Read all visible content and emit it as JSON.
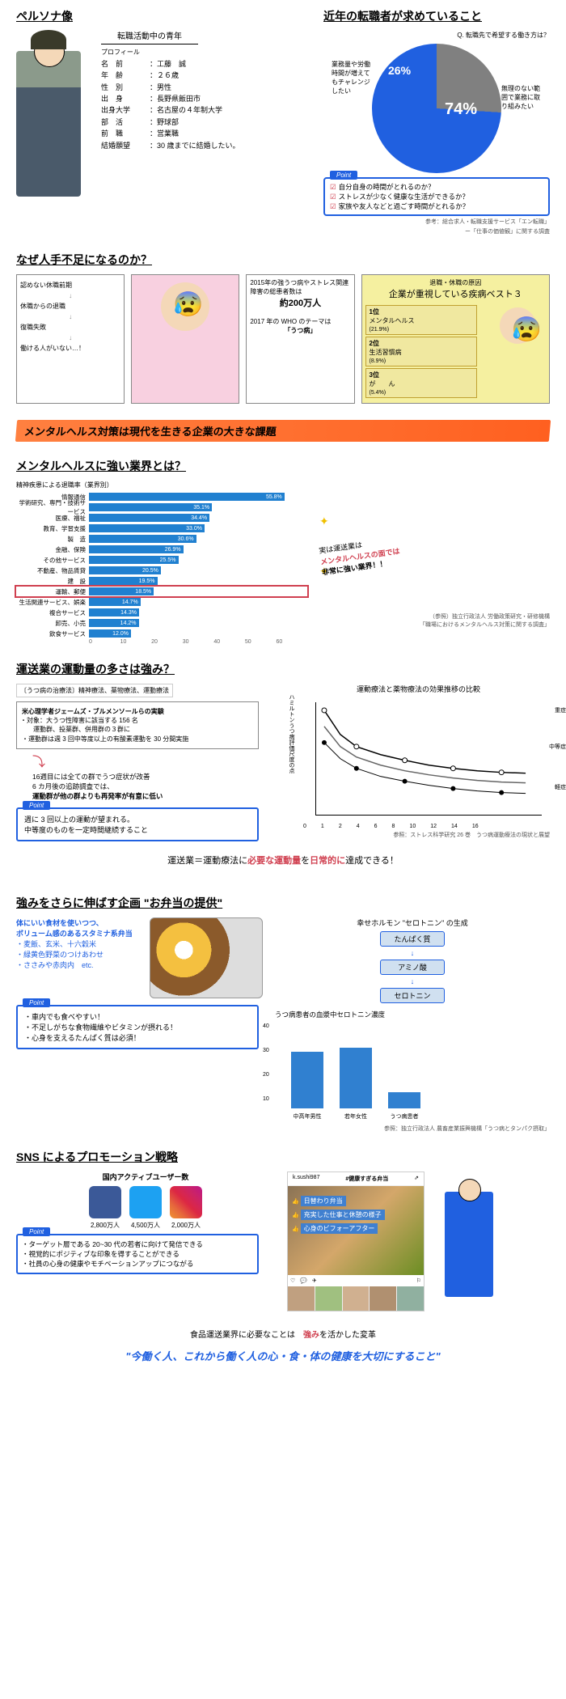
{
  "persona": {
    "heading": "ペルソナ像",
    "subtitle": "転職活動中の青年",
    "profile_label": "プロフィール",
    "rows": [
      {
        "k": "名　前",
        "v": "：工藤　誠"
      },
      {
        "k": "年　齢",
        "v": "：２６歳"
      },
      {
        "k": "性　別",
        "v": "：男性"
      },
      {
        "k": "出　身",
        "v": "：長野県飯田市"
      },
      {
        "k": "出身大学",
        "v": "：名古屋の４年制大学"
      },
      {
        "k": "部　活",
        "v": "：野球部"
      },
      {
        "k": "前　職",
        "v": "：営業職"
      },
      {
        "k": "結婚願望",
        "v": "：30 歳までに結婚したい。"
      }
    ]
  },
  "jobseeker": {
    "heading": "近年の転職者が求めていること",
    "question": "Q. 転職先で希望する働き方は？",
    "pie": {
      "slices": [
        {
          "label": "業務量や労働時間が増えてもチャレンジしたい",
          "pct": "26%",
          "color": "#808080"
        },
        {
          "label": "無理のない範囲で業務に取り組みたい",
          "pct": "74%",
          "color": "#2060e0"
        }
      ]
    },
    "points": [
      "自分自身の時間がとれるのか？",
      "ストレスが少なく健康な生活ができるか？",
      "家族や友人などと過ごす時間がとれるか？"
    ],
    "ref1": "参考：総合求人・転職支援サービス「エン転職」",
    "ref2": "ー「仕事の価値観」に関する調査"
  },
  "shortage": {
    "heading": "なぜ人手不足になるのか？",
    "flow": [
      "認めない休職前期",
      "↓",
      "休職からの退職",
      "↓",
      "復職失敗",
      "↓",
      "働ける人がいない…！"
    ],
    "stat1": "2015年の強うつ病やストレス関連障害の総患者数は",
    "stat1v": "約200万人",
    "stat2": "2017 年の WHO のテーマは",
    "stat2v": "「うつ病」",
    "disease_pretitle": "退職・休職の原因",
    "disease_title": "企業が重視している疾病ベスト３",
    "diseases": [
      {
        "rank": "1位",
        "name": "メンタルヘルス",
        "pct": "(21.9%)"
      },
      {
        "rank": "2位",
        "name": "生活習慣病",
        "pct": "(8.9%)"
      },
      {
        "rank": "3位",
        "name": "が　　ん",
        "pct": "(5.4%)"
      }
    ],
    "banner": "メンタルヘルス対策は現代を生きる企業の大きな課題"
  },
  "industry": {
    "heading": "メンタルヘルスに強い業界とは？",
    "chart_title": "精神疾患による退職率（業界別）",
    "bars": [
      {
        "label": "情報通信",
        "val": 55.8
      },
      {
        "label": "学術研究、専門・技術サービス",
        "val": 35.1
      },
      {
        "label": "医療、福祉",
        "val": 34.4
      },
      {
        "label": "教育、学習支援",
        "val": 33.0
      },
      {
        "label": "製　造",
        "val": 30.6
      },
      {
        "label": "金融、保険",
        "val": 26.9
      },
      {
        "label": "その他サービス",
        "val": 25.5
      },
      {
        "label": "不動産、物品賃貸",
        "val": 20.5
      },
      {
        "label": "建　設",
        "val": 19.5
      },
      {
        "label": "運輸、郵便",
        "val": 18.5,
        "highlight": true
      },
      {
        "label": "生活関連サービス、娯楽",
        "val": 14.7
      },
      {
        "label": "複合サービス",
        "val": 14.3
      },
      {
        "label": "卸売、小売",
        "val": 14.2
      },
      {
        "label": "飲食サービス",
        "val": 12.0
      }
    ],
    "xticks": [
      "0",
      "10",
      "20",
      "30",
      "40",
      "50",
      "60"
    ],
    "xscale_max": 60,
    "bar_color": "#2080d0",
    "note_l1": "実は運送業は",
    "note_l2": "メンタルヘルスの面では",
    "note_l3": "非常に強い業界！！",
    "ref": "（参照）独立行政法人 労働政策研究・研修機構\n「職場におけるメンタルヘルス対策に関する調査」"
  },
  "exercise": {
    "heading": "運送業の運動量の多さは強み？",
    "therapy_label": "〔うつ病の治療法〕精神療法、薬物療法、運動療法",
    "exp_title": "米心理学者ジェームズ・ブルメンソールらの実験",
    "exp_l1": "対象：大うつ性障害に該当する 156 名",
    "exp_l2": "運動群、投薬群、併用群の３群に",
    "exp_l3": "・運動群は週 3 回中等度以上の有酸素運動を 30 分間実施",
    "exp_r1": "16週目には全ての群でうつ症状が改善",
    "exp_r2": "6 カ月後の追跡調査では、",
    "exp_r3": "運動群が他の群よりも再発率が有意に低い",
    "point1": "週に 3 回以上の運動が望まれる。",
    "point2": "中等度のものを一定時間継続すること",
    "chart_title": "運動療法と薬物療法の効果推移の比較",
    "chart_ylabel": "ハミルトンうつ病評価尺度の点",
    "ylim": [
      0,
      30
    ],
    "xlim": [
      0,
      16
    ],
    "xticks": [
      "0",
      "1",
      "2",
      "4",
      "6",
      "8",
      "10",
      "12",
      "14",
      "16"
    ],
    "legend": [
      "重症",
      "中等症",
      "軽症"
    ],
    "series_colors": [
      "#000000",
      "#ffffff",
      "#808080"
    ],
    "ref": "参照：ストレス科学研究 26 巻　うつ病運動療法の現状と展望",
    "conclusion_pre": "運送業＝運動療法に",
    "conclusion_red1": "必要な運動量",
    "conclusion_mid": "を",
    "conclusion_red2": "日常的に",
    "conclusion_post": "達成できる！"
  },
  "bento": {
    "heading": "強みをさらに伸ばす企画 \"お弁当の提供\"",
    "lead1": "体にいい食材を使いつつ、",
    "lead2": "ボリューム感のあるスタミナ系弁当",
    "items": [
      "・麦飯、玄米、十六穀米",
      "・緑黄色野菜のつけあわせ",
      "・ささみや赤肉内　etc."
    ],
    "pt1": "・車内でも食べやすい！",
    "pt2": "・不足しがちな食物繊維やビタミンが摂れる！",
    "pt3": "・心身を支えるたんぱく質は必須！",
    "sero_title": "幸せホルモン \"セロトニン\" の生成",
    "sero_steps": [
      "たんぱく質",
      "アミノ酸",
      "セロトニン"
    ],
    "bar_title": "うつ病患者の血漿中セロトニン濃度",
    "bar_data": [
      {
        "label": "中高年男性",
        "v": 28
      },
      {
        "label": "若年女性",
        "v": 30
      },
      {
        "label": "うつ病患者",
        "v": 8
      }
    ],
    "bar_ylim": [
      0,
      40
    ],
    "bar_yticks": [
      "0",
      "10",
      "20",
      "30",
      "40"
    ],
    "bar_color": "#3080d0",
    "ref": "参照：独立行政法人 農畜産業振興機構「うつ病とタンパク摂取」"
  },
  "sns": {
    "heading": "SNS によるプロモーション戦略",
    "sub": "国内アクティブユーザー数",
    "platforms": [
      {
        "n": "fb",
        "v": "2,800万人"
      },
      {
        "n": "tw",
        "v": "4,500万人"
      },
      {
        "n": "ig",
        "v": "2,000万人"
      }
    ],
    "pt1": "・ターゲット層である 20~30 代の若者に向けて発信できる",
    "pt2": "・視覚的にポジティブな印象を得することができる",
    "pt3": "・社員の心身の健康やモチベーションアップにつながる",
    "insta_user": "k.sushi987",
    "insta_title": "#健康すぎる弁当",
    "tags": [
      "日替わり弁当",
      "充実した仕事と休憩の様子",
      "心身のビフォーアフター"
    ]
  },
  "final": {
    "l1_pre": "食品運送業界に必要なことは　",
    "l1_red": "強み",
    "l1_post": "を活かした変革",
    "quote": "\"今働く人、これから働く人の心・食・体の健康を大切にすること\""
  },
  "point_label": "Point"
}
